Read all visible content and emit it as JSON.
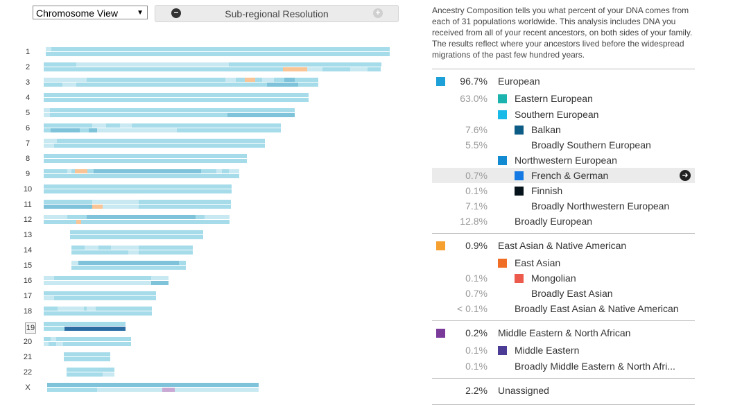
{
  "toolbar": {
    "view_select": "Chromosome View",
    "resolution_label": "Sub-regional Resolution",
    "minus_icon": "minus-circle-icon",
    "plus_icon": "plus-circle-icon"
  },
  "colors": {
    "european": "#a6dcea",
    "european_dark": "#7ec3da",
    "pale": "#c9e9f2",
    "balkan": "#2b6ca3",
    "east_asian": "#f9c596",
    "middle_eastern": "#c8a9d4"
  },
  "chromosomes": [
    "1",
    "2",
    "3",
    "4",
    "5",
    "6",
    "7",
    "8",
    "9",
    "10",
    "11",
    "12",
    "13",
    "14",
    "15",
    "16",
    "17",
    "18",
    "19",
    "20",
    "21",
    "22",
    "X"
  ],
  "selected_chromosome": "19",
  "description": "Ancestry Composition tells you what percent of your DNA comes from each of 31 populations worldwide. This analysis includes DNA you received from all of your recent ancestors, on both sides of your family. The results reflect where your ancestors lived before the widespread migrations of the past few hundred years.",
  "ancestry": [
    {
      "pct": "96.7%",
      "name": "European",
      "level": 0,
      "color": "#1d9fd8"
    },
    {
      "pct": "63.0%",
      "name": "Eastern European",
      "level": 1,
      "color": "#1ab3ad"
    },
    {
      "pct": "",
      "name": "Southern European",
      "level": 1,
      "color": "#19b9e8"
    },
    {
      "pct": "7.6%",
      "name": "Balkan",
      "level": 2,
      "color": "#0d5c86"
    },
    {
      "pct": "5.5%",
      "name": "Broadly Southern European",
      "level": 2,
      "color": ""
    },
    {
      "pct": "",
      "name": "Northwestern European",
      "level": 1,
      "color": "#138bd2"
    },
    {
      "pct": "0.7%",
      "name": "French & German",
      "level": 2,
      "color": "#1479e3",
      "highlight": true,
      "icon": "arrow-right-circle-icon"
    },
    {
      "pct": "0.1%",
      "name": "Finnish",
      "level": 2,
      "color": "#06131a"
    },
    {
      "pct": "7.1%",
      "name": "Broadly Northwestern European",
      "level": 2,
      "color": ""
    },
    {
      "pct": "12.8%",
      "name": "Broadly European",
      "level": 1,
      "color": ""
    },
    {
      "pct": "0.9%",
      "name": "East Asian & Native American",
      "level": 0,
      "color": "#f6a030"
    },
    {
      "pct": "",
      "name": "East Asian",
      "level": 1,
      "color": "#ef6d25"
    },
    {
      "pct": "0.1%",
      "name": "Mongolian",
      "level": 2,
      "color": "#ec5a4b"
    },
    {
      "pct": "0.7%",
      "name": "Broadly East Asian",
      "level": 2,
      "color": ""
    },
    {
      "pct": "< 0.1%",
      "name": "Broadly East Asian & Native American",
      "level": 1,
      "color": ""
    },
    {
      "pct": "0.2%",
      "name": "Middle Eastern & North African",
      "level": 0,
      "color": "#7a3a9a"
    },
    {
      "pct": "0.1%",
      "name": "Middle Eastern",
      "level": 1,
      "color": "#4c3c96"
    },
    {
      "pct": "0.1%",
      "name": "Broadly Middle Eastern & North Afri...",
      "level": 1,
      "color": ""
    },
    {
      "pct": "2.2%",
      "name": "Unassigned",
      "level": 0,
      "color": ""
    }
  ]
}
